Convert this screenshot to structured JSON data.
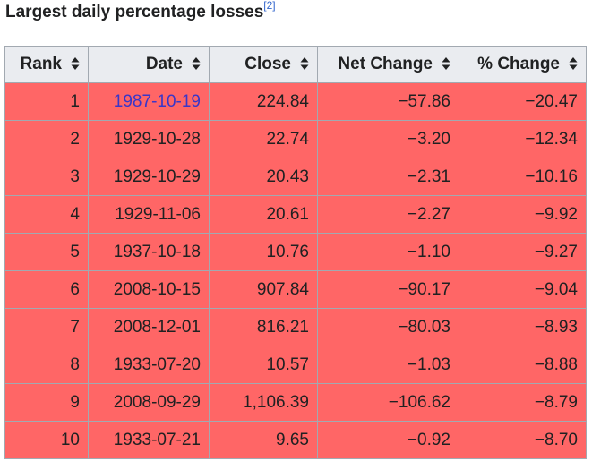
{
  "caption": {
    "title": "Largest daily percentage losses",
    "ref": "[2]"
  },
  "table": {
    "headers": [
      "Rank",
      "Date",
      "Close",
      "Net Change",
      "% Change"
    ],
    "rows": [
      {
        "rank": "1",
        "date": "1987-10-19",
        "close": "224.84",
        "net": "−57.86",
        "pct": "−20.47"
      },
      {
        "rank": "2",
        "date": "1929-10-28",
        "close": "22.74",
        "net": "−3.20",
        "pct": "−12.34"
      },
      {
        "rank": "3",
        "date": "1929-10-29",
        "close": "20.43",
        "net": "−2.31",
        "pct": "−10.16"
      },
      {
        "rank": "4",
        "date": "1929-11-06",
        "close": "20.61",
        "net": "−2.27",
        "pct": "−9.92"
      },
      {
        "rank": "5",
        "date": "1937-10-18",
        "close": "10.76",
        "net": "−1.10",
        "pct": "−9.27"
      },
      {
        "rank": "6",
        "date": "2008-10-15",
        "close": "907.84",
        "net": "−90.17",
        "pct": "−9.04"
      },
      {
        "rank": "7",
        "date": "2008-12-01",
        "close": "816.21",
        "net": "−80.03",
        "pct": "−8.93"
      },
      {
        "rank": "8",
        "date": "1933-07-20",
        "close": "10.57",
        "net": "−1.03",
        "pct": "−8.88"
      },
      {
        "rank": "9",
        "date": "2008-09-29",
        "close": "1,106.39",
        "net": "−106.62",
        "pct": "−8.79"
      },
      {
        "rank": "10",
        "date": "1933-07-21",
        "close": "9.65",
        "net": "−0.92",
        "pct": "−8.70"
      }
    ]
  },
  "colors": {
    "row_background": "#ff6666",
    "header_background": "#eaecf0",
    "link": "#3a36c8",
    "border": "#a2a9b1"
  },
  "icons": {
    "sort": "sort-icon"
  }
}
